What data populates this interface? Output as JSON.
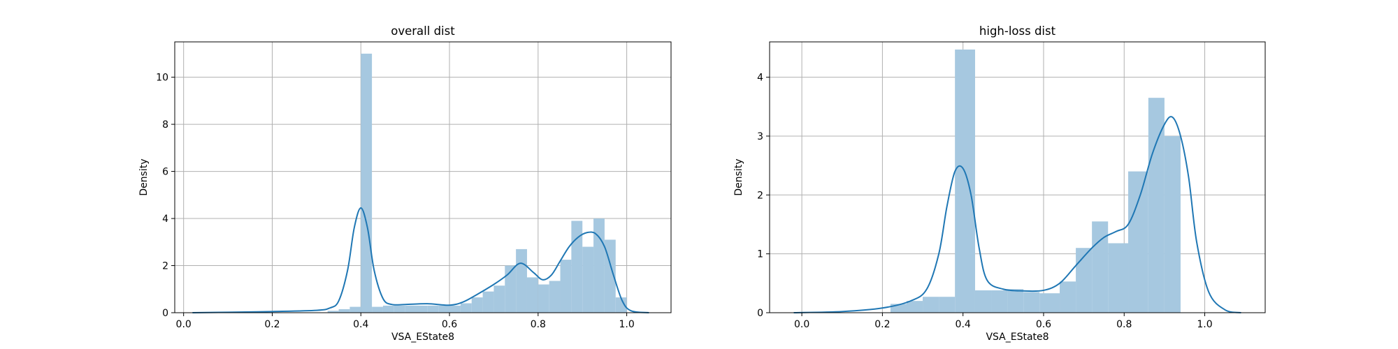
{
  "chart_data": [
    {
      "type": "bar",
      "title": "overall dist",
      "xlabel": "VSA_EState8",
      "ylabel": "Density",
      "xlim": [
        -0.02,
        1.1
      ],
      "ylim": [
        0,
        11.5
      ],
      "xticks": [
        "0.0",
        "0.2",
        "0.4",
        "0.6",
        "0.8",
        "1.0"
      ],
      "yticks": [
        "0",
        "2",
        "4",
        "6",
        "8",
        "10"
      ],
      "grid": true,
      "hist_color": "#a6c8e0",
      "kde_color": "#1f77b4",
      "bin_edges": [
        0.325,
        0.35,
        0.375,
        0.4,
        0.425,
        0.45,
        0.475,
        0.5,
        0.525,
        0.55,
        0.575,
        0.6,
        0.625,
        0.65,
        0.675,
        0.7,
        0.725,
        0.75,
        0.775,
        0.8,
        0.825,
        0.85,
        0.875,
        0.9,
        0.925,
        0.95,
        0.975,
        1.0
      ],
      "bin_values": [
        0.08,
        0.15,
        0.25,
        11.0,
        0.25,
        0.3,
        0.3,
        0.3,
        0.3,
        0.3,
        0.3,
        0.3,
        0.4,
        0.65,
        0.9,
        1.15,
        2.0,
        2.7,
        1.5,
        1.2,
        1.35,
        2.25,
        3.9,
        2.8,
        4.0,
        3.1,
        0.65
      ],
      "kde": {
        "x": [
          0.02,
          0.1,
          0.2,
          0.3,
          0.33,
          0.35,
          0.37,
          0.385,
          0.4,
          0.415,
          0.43,
          0.45,
          0.47,
          0.5,
          0.55,
          0.6,
          0.63,
          0.66,
          0.7,
          0.73,
          0.76,
          0.79,
          0.81,
          0.83,
          0.85,
          0.87,
          0.89,
          0.91,
          0.93,
          0.95,
          0.97,
          0.99,
          1.01,
          1.05
        ],
        "y": [
          0.0,
          0.02,
          0.05,
          0.1,
          0.2,
          0.5,
          1.8,
          3.6,
          4.45,
          3.6,
          1.8,
          0.6,
          0.35,
          0.35,
          0.38,
          0.32,
          0.45,
          0.75,
          1.2,
          1.6,
          2.1,
          1.7,
          1.4,
          1.6,
          2.2,
          2.8,
          3.2,
          3.4,
          3.35,
          2.8,
          1.6,
          0.5,
          0.08,
          0.0
        ]
      }
    },
    {
      "type": "bar",
      "title": "high-loss dist",
      "xlabel": "VSA_EState8",
      "ylabel": "Density",
      "xlim": [
        -0.08,
        1.15
      ],
      "ylim": [
        0,
        4.6
      ],
      "xticks": [
        "0.0",
        "0.2",
        "0.4",
        "0.6",
        "0.8",
        "1.0"
      ],
      "yticks": [
        "0",
        "1",
        "2",
        "3",
        "4"
      ],
      "grid": true,
      "hist_color": "#a6c8e0",
      "kde_color": "#1f77b4",
      "bin_edges": [
        0.22,
        0.26,
        0.3,
        0.34,
        0.38,
        0.43,
        0.47,
        0.51,
        0.55,
        0.59,
        0.64,
        0.68,
        0.72,
        0.76,
        0.81,
        0.86,
        0.9,
        0.94,
        0.98
      ],
      "bin_values": [
        0.15,
        0.2,
        0.27,
        0.27,
        4.47,
        0.38,
        0.38,
        0.4,
        0.35,
        0.33,
        0.53,
        1.1,
        1.55,
        1.18,
        2.4,
        3.65,
        3.0,
        0.0
      ],
      "kde": {
        "x": [
          -0.02,
          0.1,
          0.2,
          0.27,
          0.31,
          0.34,
          0.36,
          0.38,
          0.4,
          0.42,
          0.44,
          0.46,
          0.5,
          0.55,
          0.6,
          0.64,
          0.68,
          0.72,
          0.75,
          0.78,
          0.81,
          0.84,
          0.87,
          0.9,
          0.92,
          0.94,
          0.96,
          0.98,
          1.01,
          1.05,
          1.09
        ],
        "y": [
          0.0,
          0.02,
          0.08,
          0.2,
          0.4,
          1.0,
          1.8,
          2.4,
          2.45,
          2.0,
          1.1,
          0.55,
          0.4,
          0.37,
          0.38,
          0.5,
          0.8,
          1.1,
          1.28,
          1.38,
          1.5,
          2.0,
          2.7,
          3.2,
          3.32,
          3.0,
          2.3,
          1.2,
          0.35,
          0.05,
          0.0
        ]
      }
    }
  ]
}
